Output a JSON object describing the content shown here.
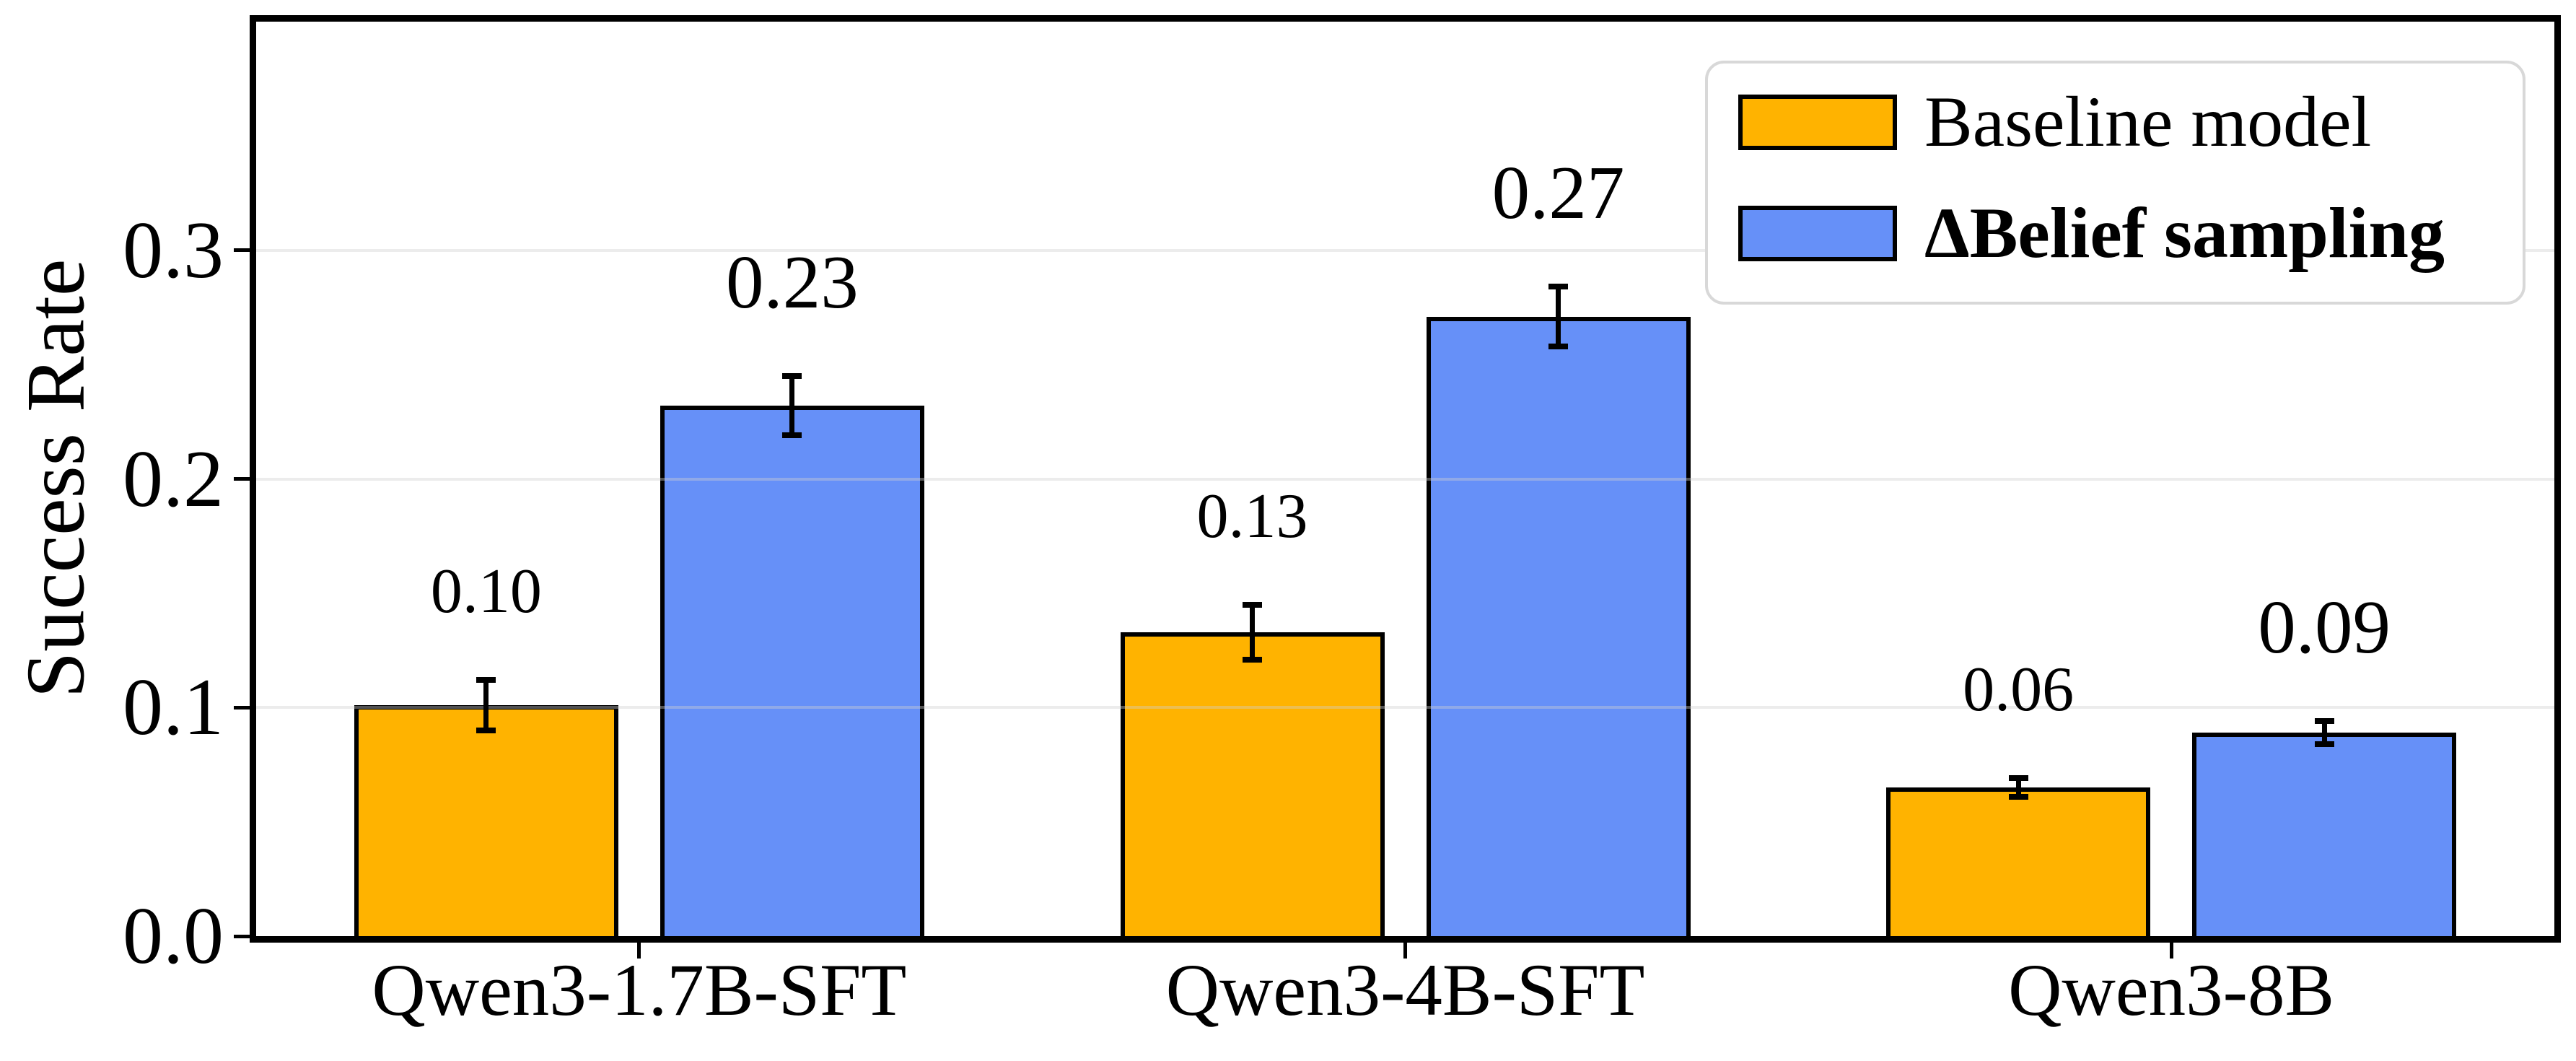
{
  "chart_data": {
    "type": "bar",
    "title": "",
    "xlabel": "",
    "ylabel": "Success Rate",
    "categories": [
      "Qwen3-1.7B-SFT",
      "Qwen3-4B-SFT",
      "Qwen3-8B"
    ],
    "series": [
      {
        "name": "Baseline model",
        "color": "#FFB300",
        "values": [
          0.101,
          0.133,
          0.065
        ],
        "errors": [
          0.011,
          0.012,
          0.004
        ],
        "value_labels": [
          "0.10",
          "0.13",
          "0.06"
        ]
      },
      {
        "name": "ΔBelief sampling",
        "color": "#6690F8",
        "values": [
          0.232,
          0.271,
          0.089
        ],
        "errors": [
          0.013,
          0.013,
          0.005
        ],
        "value_labels": [
          "0.23",
          "0.27",
          "0.09"
        ]
      }
    ],
    "ylim": [
      0,
      0.4
    ],
    "ytick_values": [
      0.0,
      0.1,
      0.2,
      0.3
    ],
    "ytick_labels": [
      "0.0",
      "0.1",
      "0.2",
      "0.3"
    ],
    "grid": true,
    "grid_overlay_on_bars": true,
    "legend_position": "upper right"
  },
  "legend": {
    "items": [
      {
        "label": "Baseline model",
        "color": "#FFB300",
        "bold": false
      },
      {
        "label": "ΔBelief sampling",
        "color": "#6690F8",
        "bold": true
      }
    ]
  },
  "colors": {
    "bar_edge": "#000000",
    "axis": "#000000",
    "grid": "rgba(208,208,208,0.4)",
    "legend_border": "#d8d8d8",
    "background": "#ffffff",
    "text": "#000000"
  }
}
